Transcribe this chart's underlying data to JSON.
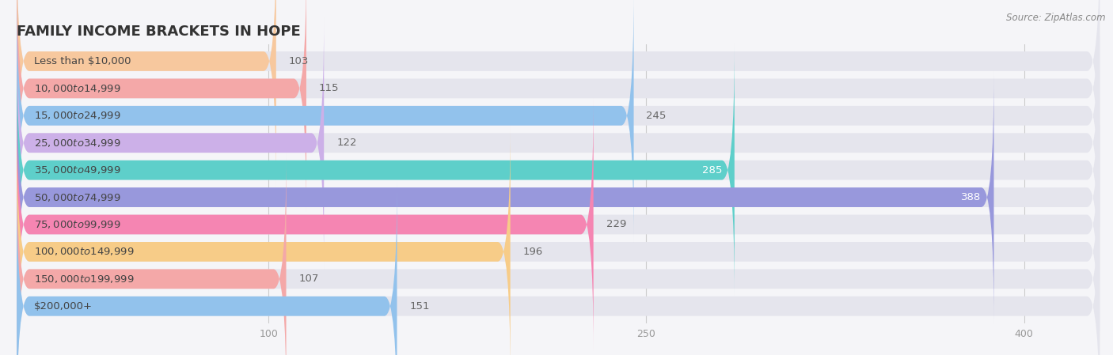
{
  "title": "FAMILY INCOME BRACKETS IN HOPE",
  "source": "Source: ZipAtlas.com",
  "categories": [
    "Less than $10,000",
    "$10,000 to $14,999",
    "$15,000 to $24,999",
    "$25,000 to $34,999",
    "$35,000 to $49,999",
    "$50,000 to $74,999",
    "$75,000 to $99,999",
    "$100,000 to $149,999",
    "$150,000 to $199,999",
    "$200,000+"
  ],
  "values": [
    103,
    115,
    245,
    122,
    285,
    388,
    229,
    196,
    107,
    151
  ],
  "bar_colors": [
    "#f7c89e",
    "#f4a8a8",
    "#92c2ec",
    "#ccb0e8",
    "#5ecfca",
    "#9898dc",
    "#f585b2",
    "#f7cc88",
    "#f4a8a8",
    "#92c2ec"
  ],
  "bg_color": "#f5f5f8",
  "bar_bg_color": "#e5e5ed",
  "xlim": [
    0,
    430
  ],
  "xticks": [
    100,
    250,
    400
  ],
  "title_fontsize": 13,
  "label_fontsize": 9.5,
  "value_fontsize": 9.5,
  "tick_fontsize": 9
}
